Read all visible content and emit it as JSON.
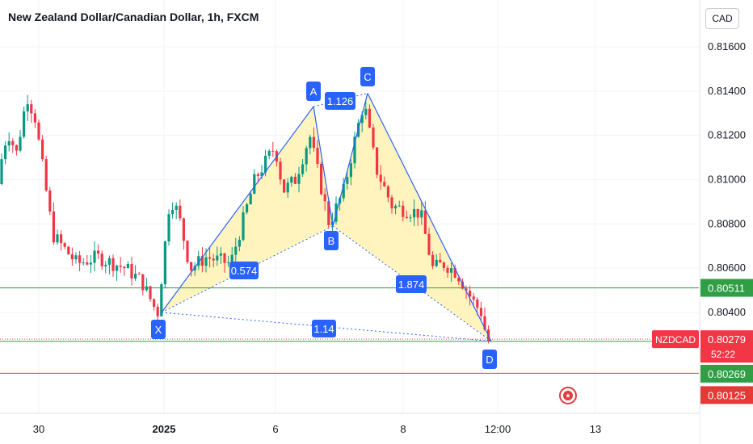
{
  "title": "New Zealand Dollar/Canadian Dollar, 1h, FXCM",
  "currency_button": "CAD",
  "colors": {
    "up": "#089981",
    "down": "#f23645",
    "pattern_fill": "#fff2b3",
    "pattern_line": "#2962ff",
    "label_bg": "#2962ff",
    "green_line": "#2f9e44",
    "red_line": "#e53935"
  },
  "chart_data": {
    "type": "candlestick",
    "title": "New Zealand Dollar/Canadian Dollar, 1h, FXCM",
    "y_axis_ticks": [
      "0.81600",
      "0.81400",
      "0.81200",
      "0.81000",
      "0.80800",
      "0.80600",
      "0.80400"
    ],
    "x_axis_ticks": [
      "30",
      "2025",
      "6",
      "8",
      "12:00",
      "13"
    ],
    "price_labels": [
      {
        "name": "",
        "value": "0.80511",
        "color": "green"
      },
      {
        "name": "NZDCAD",
        "value": "0.80279",
        "countdown": "52:22",
        "color": "red"
      },
      {
        "name": "",
        "value": "0.80269",
        "color": "green"
      },
      {
        "name": "",
        "value": "0.80125",
        "color": "red"
      }
    ],
    "pattern": {
      "type": "harmonic XABCD",
      "points": [
        {
          "label": "X",
          "price": 0.804
        },
        {
          "label": "A",
          "price": 0.8133
        },
        {
          "label": "B",
          "price": 0.8079
        },
        {
          "label": "C",
          "price": 0.8139
        },
        {
          "label": "D",
          "price": 0.8027
        }
      ],
      "ratios": [
        "0.574",
        "1.126",
        "1.874",
        "1.14"
      ]
    },
    "horizontal_lines": [
      0.80511,
      0.80279,
      0.80269,
      0.80125
    ]
  }
}
